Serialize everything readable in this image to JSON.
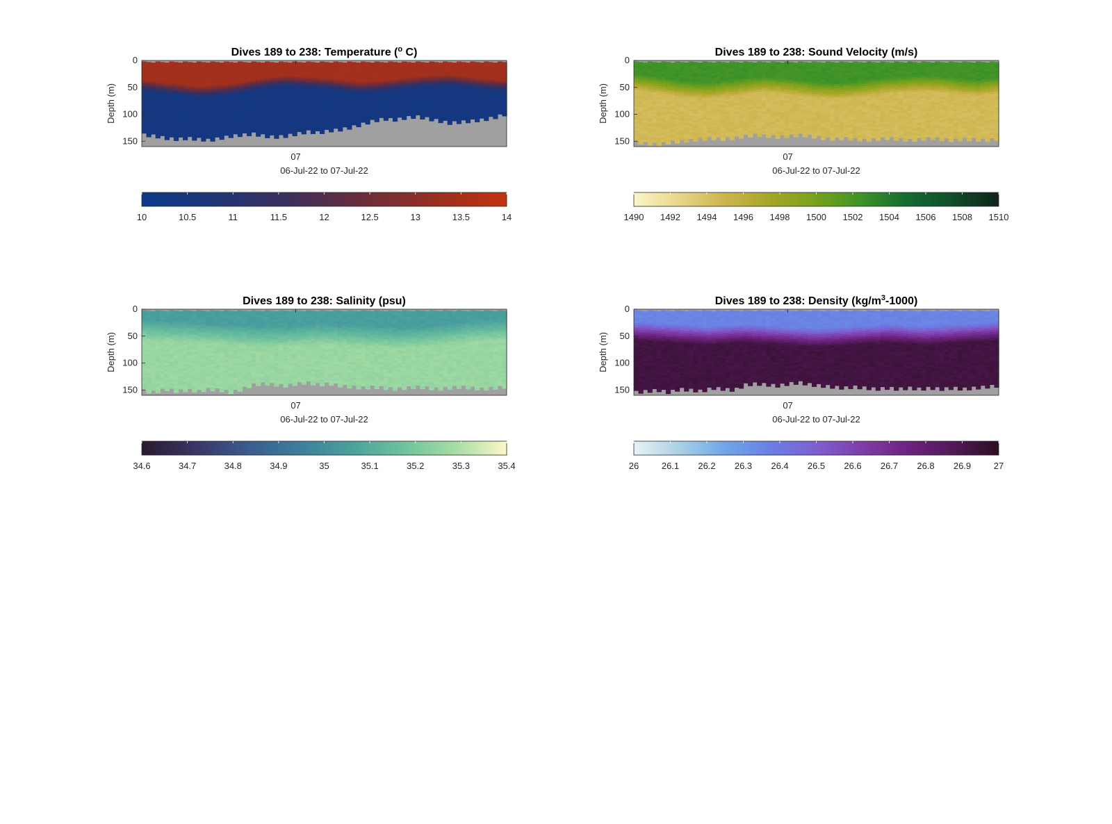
{
  "figure": {
    "chart_data": [
      {
        "type": "heatmap",
        "title": "Dives 189 to 238: Temperature (",
        "title_sup": "o",
        "title_after": " C)",
        "ylabel": "Depth (m)",
        "xlabel": "06-Jul-22 to 07-Jul-22",
        "x_ticks": [
          "07"
        ],
        "y_ticks": [
          "0",
          "50",
          "100",
          "150"
        ],
        "ylim": [
          0,
          160
        ],
        "yreversed": true,
        "profiles": 80,
        "no_data_color": "#a0a0a0",
        "colorbar": {
          "ticks": [
            "10",
            "10.5",
            "11",
            "11.5",
            "12",
            "12.5",
            "13",
            "13.5",
            "14"
          ],
          "range": [
            10,
            14
          ],
          "colors": [
            "#0a3a8a",
            "#1f3575",
            "#3b2f5e",
            "#6a2d3c",
            "#972f22",
            "#c2330e"
          ]
        },
        "field": {
          "surface_value": 13.4,
          "deep_value": 10.4,
          "transition_top": [
            36,
            40,
            44,
            48,
            46,
            42,
            36,
            30,
            28,
            30,
            32,
            36,
            40,
            38,
            34,
            30,
            28,
            26,
            30,
            34,
            36
          ],
          "transition_width": 22,
          "bottom_depth": [
            138,
            140,
            144,
            146,
            144,
            146,
            148,
            144,
            140,
            138,
            136,
            140,
            142,
            140,
            136,
            132,
            134,
            130,
            128,
            124,
            118,
            112,
            108,
            110,
            106,
            104,
            108,
            112,
            116,
            114,
            112,
            110,
            106,
            100
          ]
        }
      },
      {
        "type": "heatmap",
        "title": "Dives 189 to 238: Sound Velocity (m/s)",
        "ylabel": "Depth (m)",
        "xlabel": "06-Jul-22 to 07-Jul-22",
        "x_ticks": [
          "07"
        ],
        "y_ticks": [
          "0",
          "50",
          "100",
          "150"
        ],
        "ylim": [
          0,
          160
        ],
        "yreversed": true,
        "profiles": 80,
        "no_data_color": "#a0a0a0",
        "colorbar": {
          "ticks": [
            "1490",
            "1492",
            "1494",
            "1496",
            "1498",
            "1500",
            "1502",
            "1504",
            "1506",
            "1508",
            "1510"
          ],
          "range": [
            1490,
            1510
          ],
          "colors": [
            "#fbf6c6",
            "#e8d58a",
            "#cdb44e",
            "#a5a626",
            "#75a11c",
            "#3e9328",
            "#146b32",
            "#0f4d2a",
            "#11241a"
          ]
        },
        "field": {
          "surface_value": 1502.4,
          "deep_value": 1494.6,
          "transition_top": [
            26,
            30,
            36,
            40,
            42,
            38,
            34,
            30,
            32,
            36,
            40,
            42,
            40,
            36,
            32,
            30,
            28,
            30,
            34,
            36,
            32
          ],
          "transition_width": 30,
          "bottom_depth": [
            152,
            154,
            156,
            152,
            150,
            148,
            146,
            144,
            146,
            144,
            140,
            138,
            140,
            142,
            140,
            138,
            140,
            144,
            146,
            144,
            146,
            148,
            146,
            144,
            146,
            148,
            146,
            144,
            146,
            148,
            146,
            146,
            148,
            146
          ]
        }
      },
      {
        "type": "heatmap",
        "title": "Dives 189 to 238: Salinity (psu)",
        "ylabel": "Depth (m)",
        "xlabel": "06-Jul-22 to 07-Jul-22",
        "x_ticks": [
          "07"
        ],
        "y_ticks": [
          "0",
          "50",
          "100",
          "150"
        ],
        "ylim": [
          0,
          160
        ],
        "yreversed": true,
        "profiles": 80,
        "no_data_color": "#a0a0a0",
        "colorbar": {
          "ticks": [
            "34.6",
            "34.7",
            "34.8",
            "34.9",
            "35",
            "35.1",
            "35.2",
            "35.3",
            "35.4"
          ],
          "range": [
            34.6,
            35.4
          ],
          "colors": [
            "#2a1a2e",
            "#3a3464",
            "#3a5a8c",
            "#3e7d9a",
            "#4aa09c",
            "#6dc19d",
            "#a6dca3",
            "#fbf8c8"
          ]
        },
        "field": {
          "surface_value": 35.05,
          "deep_value": 35.26,
          "transition_top": [
            18,
            20,
            22,
            24,
            26,
            28,
            30,
            32,
            30,
            28,
            26,
            28,
            30,
            32,
            34,
            32,
            30,
            26,
            22,
            20,
            18
          ],
          "transition_width": 40,
          "bottom_depth": [
            152,
            154,
            148,
            152,
            150,
            152,
            148,
            150,
            154,
            148,
            140,
            138,
            140,
            142,
            138,
            136,
            140,
            138,
            142,
            144,
            146,
            144,
            146,
            148,
            146,
            144,
            146,
            148,
            146,
            144,
            146,
            148,
            146,
            144
          ]
        }
      },
      {
        "type": "heatmap",
        "title": "Dives 189 to 238: Density (kg/m",
        "title_sup": "3",
        "title_after": "-1000)",
        "ylabel": "Depth (m)",
        "xlabel": "06-Jul-22 to 07-Jul-22",
        "x_ticks": [
          "07"
        ],
        "y_ticks": [
          "0",
          "50",
          "100",
          "150"
        ],
        "ylim": [
          0,
          160
        ],
        "yreversed": true,
        "profiles": 80,
        "no_data_color": "#a0a0a0",
        "colorbar": {
          "ticks": [
            "26",
            "26.1",
            "26.2",
            "26.3",
            "26.4",
            "26.5",
            "26.6",
            "26.7",
            "26.8",
            "26.9",
            "27"
          ],
          "range": [
            26,
            27
          ],
          "colors": [
            "#e8f3f3",
            "#a9d0e6",
            "#6fa6e6",
            "#6a7fe4",
            "#7f5fd0",
            "#7e3ea8",
            "#6c2380",
            "#511a58",
            "#2e0d23"
          ]
        },
        "field": {
          "surface_value": 26.36,
          "deep_value": 26.93,
          "transition_top": [
            24,
            26,
            28,
            30,
            32,
            30,
            28,
            30,
            32,
            34,
            36,
            34,
            32,
            30,
            28,
            30,
            32,
            30,
            28,
            26,
            24
          ],
          "transition_width": 34,
          "bottom_depth": [
            154,
            152,
            150,
            154,
            148,
            150,
            152,
            146,
            148,
            150,
            140,
            138,
            140,
            142,
            138,
            136,
            140,
            142,
            144,
            146,
            144,
            146,
            148,
            146,
            148,
            146,
            148,
            146,
            148,
            146,
            148,
            146,
            144,
            142
          ]
        }
      }
    ]
  }
}
